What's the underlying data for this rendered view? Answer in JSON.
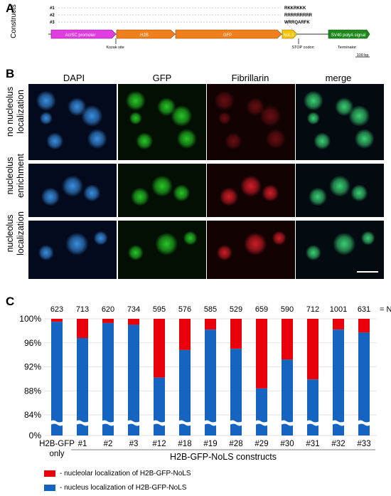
{
  "panelA": {
    "letter": "A",
    "constructs_label": "Constructs",
    "constructs": [
      {
        "id": "#1",
        "seq": "RKKRKKK"
      },
      {
        "id": "#2",
        "seq": "RRRRRRRRR"
      },
      {
        "id": "#3",
        "seq": "WRRQARFK"
      }
    ],
    "elements": [
      {
        "label": "ActSC promoter",
        "color": "#e03ce0"
      },
      {
        "label": "H2B",
        "color": "#f07f1c"
      },
      {
        "label": "GFP",
        "color": "#f07f1c"
      },
      {
        "label": "NoLS",
        "color": "#f5c400"
      },
      {
        "label": "SV40 polyA signal",
        "color": "#1e8a1e"
      }
    ],
    "annotations": {
      "kozak": "Kozak site",
      "stop": "STOP codon",
      "terminator": "Terminator",
      "scale": "100 bp"
    }
  },
  "panelB": {
    "letter": "B",
    "columns": [
      {
        "label": "DAPI",
        "color": "#1f6fd6"
      },
      {
        "label": "GFP",
        "color": "#1a9e1a"
      },
      {
        "label": "Fibrillarin",
        "color": "#d01a1a"
      },
      {
        "label": "merge",
        "color": "#000000"
      }
    ],
    "rows": [
      {
        "line1": "no nucleolus",
        "line2": "localization"
      },
      {
        "line1": "nucleolus",
        "line2": "enrichment"
      },
      {
        "line1": "nucleolus",
        "line2": "localization"
      }
    ]
  },
  "panelC": {
    "letter": "C",
    "n_suffix": "= N",
    "xlabel_group": "H2B-GFP-NoLS constructs",
    "legend": [
      {
        "label": "- nucleolar localization of H2B-GFP-NoLS",
        "color": "#e8000b"
      },
      {
        "label": "- nucleus localization of H2B-GFP-NoLS",
        "color": "#1565c0"
      }
    ]
  },
  "chart_data": {
    "type": "bar",
    "stacked": true,
    "categories": [
      "H2B-GFP only",
      "#1",
      "#2",
      "#3",
      "#12",
      "#18",
      "#19",
      "#28",
      "#29",
      "#30",
      "#31",
      "#32",
      "#33"
    ],
    "n_values": [
      623,
      713,
      620,
      734,
      595,
      576,
      585,
      529,
      659,
      590,
      712,
      1001,
      631
    ],
    "series": [
      {
        "name": "nucleus localization of H2B-GFP-NoLS",
        "color": "#1565c0",
        "values": [
          99.5,
          96.8,
          99.3,
          99.0,
          90.2,
          94.8,
          98.2,
          95.0,
          88.4,
          93.2,
          89.9,
          98.2,
          97.7
        ]
      },
      {
        "name": "nucleolar localization of H2B-GFP-NoLS",
        "color": "#e8000b",
        "values": [
          0.5,
          3.2,
          0.7,
          1.0,
          9.8,
          5.2,
          1.8,
          5.0,
          11.6,
          6.8,
          10.1,
          1.8,
          2.3
        ]
      }
    ],
    "yticks": [
      "0%",
      "84%",
      "88%",
      "92%",
      "96%",
      "100%"
    ],
    "ylim": [
      84,
      100
    ],
    "axis_break": true,
    "grid": true,
    "legend_position": "bottom-left"
  }
}
